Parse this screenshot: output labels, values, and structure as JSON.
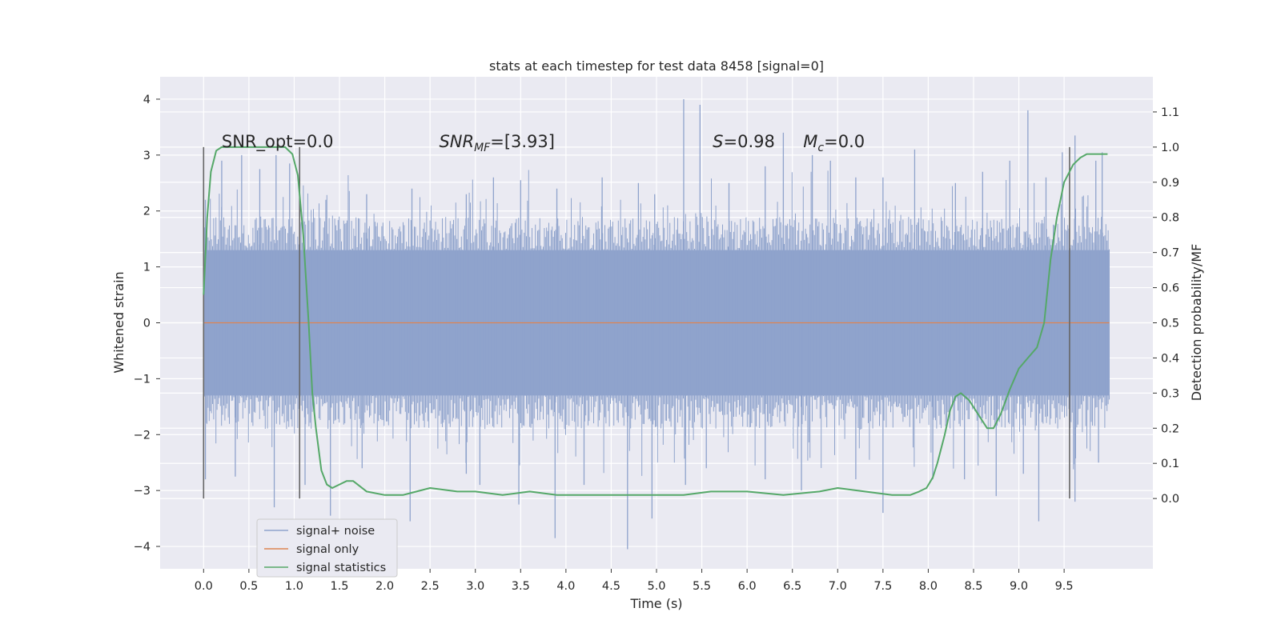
{
  "chart_data": {
    "type": "line",
    "title": "stats at each timestep for test data 8458 [signal=0]",
    "xlabel": "Time (s)",
    "ylabel_left": "Whitened strain",
    "ylabel_right": "Detection probability/MF",
    "xlim": [
      -0.48,
      10.48
    ],
    "ylim_left": [
      -4.4,
      4.4
    ],
    "ylim_right": [
      -0.2,
      1.2
    ],
    "x_ticks": [
      "0.0",
      "0.5",
      "1.0",
      "1.5",
      "2.0",
      "2.5",
      "3.0",
      "3.5",
      "4.0",
      "4.5",
      "5.0",
      "5.5",
      "6.0",
      "6.5",
      "7.0",
      "7.5",
      "8.0",
      "8.5",
      "9.0",
      "9.5"
    ],
    "y_left_ticks": [
      "−4",
      "−3",
      "−2",
      "−1",
      "0",
      "1",
      "2",
      "3",
      "4"
    ],
    "y_right_ticks": [
      "0.0",
      "0.1",
      "0.2",
      "0.3",
      "0.4",
      "0.5",
      "0.6",
      "0.7",
      "0.8",
      "0.9",
      "1.0",
      "1.1"
    ],
    "grid": true,
    "annotations": [
      {
        "text": "SNR_opt=0.0",
        "x": 0.2
      },
      {
        "text": "SNR",
        "sub": "MF",
        "tail": "=[3.93]",
        "italic_main": true,
        "x": 2.6
      },
      {
        "text": "S",
        "tail": "=0.98",
        "italic_main": true,
        "x": 5.62
      },
      {
        "text": "M",
        "sub": "c",
        "tail": "=0.0",
        "italic_main": true,
        "x": 6.62
      }
    ],
    "vertical_markers_x": [
      0.0,
      1.06,
      9.56
    ],
    "noise": {
      "name": "signal+ noise",
      "color": "#8fa3cc",
      "x_range": [
        0.0,
        10.0
      ],
      "envelope_hi": 1.3,
      "envelope_lo": -1.3,
      "spikes_up": [
        [
          0.02,
          2.2
        ],
        [
          0.2,
          2.9
        ],
        [
          0.42,
          3.0
        ],
        [
          0.62,
          2.75
        ],
        [
          0.8,
          3.0
        ],
        [
          0.95,
          2.85
        ],
        [
          1.35,
          2.2
        ],
        [
          1.8,
          2.3
        ],
        [
          2.3,
          2.4
        ],
        [
          2.9,
          2.3
        ],
        [
          3.2,
          2.6
        ],
        [
          3.5,
          2.55
        ],
        [
          3.9,
          2.4
        ],
        [
          4.4,
          2.6
        ],
        [
          4.8,
          2.5
        ],
        [
          4.98,
          2.3
        ],
        [
          5.3,
          4.0
        ],
        [
          5.48,
          3.9
        ],
        [
          5.8,
          2.5
        ],
        [
          6.2,
          2.8
        ],
        [
          6.4,
          3.4
        ],
        [
          6.72,
          3.0
        ],
        [
          6.92,
          2.9
        ],
        [
          7.2,
          2.6
        ],
        [
          7.5,
          2.6
        ],
        [
          7.85,
          3.1
        ],
        [
          8.3,
          2.5
        ],
        [
          8.6,
          2.7
        ],
        [
          8.9,
          2.9
        ],
        [
          9.1,
          3.8
        ],
        [
          9.3,
          2.6
        ],
        [
          9.48,
          3.05
        ],
        [
          9.62,
          3.35
        ],
        [
          9.85,
          2.9
        ],
        [
          9.92,
          3.05
        ]
      ],
      "spikes_down": [
        [
          0.02,
          -2.8
        ],
        [
          0.35,
          -2.75
        ],
        [
          0.78,
          -3.3
        ],
        [
          1.12,
          -2.9
        ],
        [
          1.4,
          -3.45
        ],
        [
          1.75,
          -2.6
        ],
        [
          2.28,
          -3.55
        ],
        [
          2.9,
          -2.7
        ],
        [
          3.05,
          -2.9
        ],
        [
          3.48,
          -3.25
        ],
        [
          3.88,
          -3.85
        ],
        [
          4.2,
          -2.9
        ],
        [
          4.68,
          -4.05
        ],
        [
          4.95,
          -3.5
        ],
        [
          5.32,
          -2.9
        ],
        [
          5.55,
          -2.6
        ],
        [
          6.2,
          -2.8
        ],
        [
          6.6,
          -3.0
        ],
        [
          7.2,
          -2.8
        ],
        [
          7.5,
          -3.4
        ],
        [
          8.05,
          -2.8
        ],
        [
          8.4,
          -2.8
        ],
        [
          8.75,
          -3.1
        ],
        [
          9.05,
          -2.7
        ],
        [
          9.22,
          -3.55
        ],
        [
          9.62,
          -3.2
        ],
        [
          9.88,
          -2.5
        ]
      ]
    },
    "signal_only": {
      "name": "signal only",
      "color": "#dd8452",
      "x": [
        0.0,
        10.0
      ],
      "y": [
        0.0,
        0.0
      ]
    },
    "statistics": {
      "name": "signal statistics",
      "color": "#55a868",
      "x": [
        0.0,
        0.04,
        0.08,
        0.14,
        0.2,
        0.3,
        0.5,
        0.7,
        0.9,
        0.98,
        1.04,
        1.1,
        1.16,
        1.2,
        1.24,
        1.3,
        1.36,
        1.42,
        1.5,
        1.58,
        1.65,
        1.8,
        2.0,
        2.2,
        2.5,
        2.8,
        3.0,
        3.3,
        3.6,
        3.9,
        4.3,
        4.7,
        5.0,
        5.3,
        5.6,
        6.0,
        6.4,
        6.8,
        7.0,
        7.3,
        7.6,
        7.8,
        7.9,
        7.98,
        8.05,
        8.1,
        8.18,
        8.24,
        8.3,
        8.36,
        8.45,
        8.55,
        8.65,
        8.72,
        8.8,
        8.9,
        9.0,
        9.1,
        9.2,
        9.28,
        9.35,
        9.42,
        9.5,
        9.6,
        9.68,
        9.75,
        9.82,
        9.9,
        9.98
      ],
      "y": [
        0.58,
        0.8,
        0.93,
        0.99,
        1.0,
        1.0,
        1.0,
        1.0,
        1.0,
        0.98,
        0.92,
        0.75,
        0.5,
        0.3,
        0.2,
        0.08,
        0.04,
        0.03,
        0.04,
        0.05,
        0.05,
        0.02,
        0.01,
        0.01,
        0.03,
        0.02,
        0.02,
        0.01,
        0.02,
        0.01,
        0.01,
        0.01,
        0.01,
        0.01,
        0.02,
        0.02,
        0.01,
        0.02,
        0.03,
        0.02,
        0.01,
        0.01,
        0.02,
        0.03,
        0.06,
        0.1,
        0.18,
        0.25,
        0.29,
        0.3,
        0.28,
        0.24,
        0.2,
        0.2,
        0.24,
        0.31,
        0.37,
        0.4,
        0.43,
        0.5,
        0.68,
        0.8,
        0.9,
        0.95,
        0.97,
        0.98,
        0.98,
        0.98,
        0.98
      ]
    },
    "legend": {
      "position": "lower-left",
      "entries": [
        "signal+ noise",
        "signal only",
        "signal statistics"
      ]
    }
  }
}
